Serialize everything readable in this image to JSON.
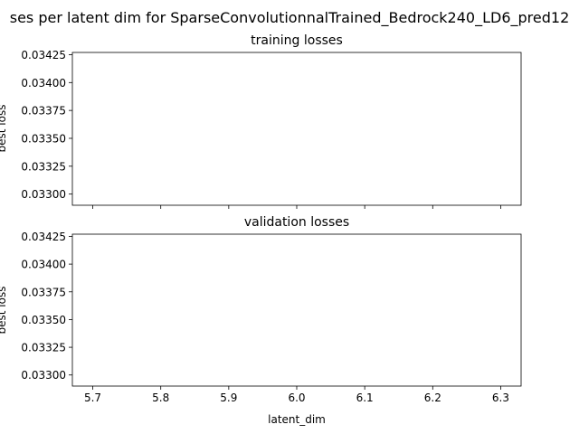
{
  "suptitle": "ses per latent dim for SparseConvolutionnalTrained_Bedrock240_LD6_pred12",
  "chart_data": [
    {
      "type": "line",
      "title": "training losses",
      "xlabel": "",
      "ylabel": "best loss",
      "xlim": [
        5.67,
        6.33
      ],
      "ylim": [
        0.0329,
        0.03427
      ],
      "xticks": [
        5.7,
        5.8,
        5.9,
        6.0,
        6.1,
        6.2,
        6.3
      ],
      "xtick_labels": [],
      "yticks": [
        0.033,
        0.03325,
        0.0335,
        0.03375,
        0.034,
        0.03425
      ],
      "ytick_labels": [
        "0.03300",
        "0.03325",
        "0.03350",
        "0.03375",
        "0.03400",
        "0.03425"
      ],
      "series": [],
      "grid": false
    },
    {
      "type": "line",
      "title": "validation losses",
      "xlabel": "latent_dim",
      "ylabel": "best loss",
      "xlim": [
        5.67,
        6.33
      ],
      "ylim": [
        0.0329,
        0.03427
      ],
      "xticks": [
        5.7,
        5.8,
        5.9,
        6.0,
        6.1,
        6.2,
        6.3
      ],
      "xtick_labels": [
        "5.7",
        "5.8",
        "5.9",
        "6.0",
        "6.1",
        "6.2",
        "6.3"
      ],
      "yticks": [
        0.033,
        0.03325,
        0.0335,
        0.03375,
        0.034,
        0.03425
      ],
      "ytick_labels": [
        "0.03300",
        "0.03325",
        "0.03350",
        "0.03375",
        "0.03400",
        "0.03425"
      ],
      "series": [],
      "grid": false
    }
  ]
}
